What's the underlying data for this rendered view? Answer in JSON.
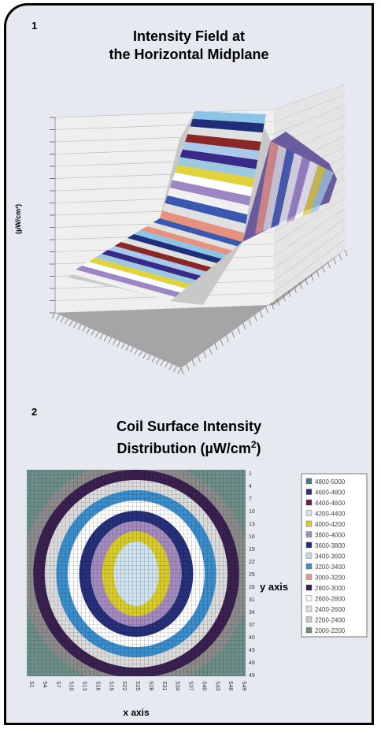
{
  "figure1": {
    "number": "1",
    "title_line1": "Intensity Field at",
    "title_line2": "the Horizontal Midplane",
    "ylabel": "(µW/cm²)"
  },
  "figure2": {
    "number": "2",
    "title_line1": "Coil Surface Intensity",
    "title_line2_text": "Distribution (µW/cm",
    "title_line2_sup": "2",
    "title_line2_close": ")",
    "xlabel": "x axis",
    "ylabel": "y axis",
    "y_ticks": [
      "1",
      "4",
      "7",
      "10",
      "13",
      "16",
      "19",
      "22",
      "25",
      "28",
      "31",
      "34",
      "37",
      "40",
      "43",
      "46",
      "49"
    ],
    "x_ticks": [
      "S1",
      "S4",
      "S7",
      "S10",
      "S13",
      "S16",
      "S19",
      "S22",
      "S25",
      "S28",
      "S31",
      "S34",
      "S37",
      "S40",
      "S43",
      "S46",
      "S49"
    ]
  },
  "chart_data": [
    {
      "type": "surface",
      "title": "Intensity Field at the Horizontal Midplane",
      "ylabel": "(µW/cm²)",
      "band_colors": [
        "#e8917e",
        "#e0e0e0",
        "#3a58b0",
        "#f0f0f0",
        "#9d86c4",
        "#ffffff",
        "#e2d23c",
        "#9cc8e0",
        "#3a2a88",
        "#a8c8ec",
        "#8a2828",
        "#e0e0e0",
        "#1e2e78",
        "#8cc4e8"
      ]
    },
    {
      "type": "heatmap",
      "title": "Coil Surface Intensity Distribution (µW/cm²)",
      "xlabel": "x axis",
      "ylabel": "y axis",
      "y_ticks": [
        1,
        4,
        7,
        10,
        13,
        16,
        19,
        22,
        25,
        28,
        31,
        34,
        37,
        40,
        43,
        46,
        49
      ],
      "x_ticks": [
        "S1",
        "S4",
        "S7",
        "S10",
        "S13",
        "S16",
        "S19",
        "S22",
        "S25",
        "S28",
        "S31",
        "S34",
        "S37",
        "S40",
        "S43",
        "S46",
        "S49"
      ],
      "legend": [
        {
          "label": "4800-5000",
          "color": "#3c7e90"
        },
        {
          "label": "4600-4800",
          "color": "#3a2a80"
        },
        {
          "label": "4400-4600",
          "color": "#6e1f52"
        },
        {
          "label": "4200-4400",
          "color": "#cfe4ee"
        },
        {
          "label": "4000-4200",
          "color": "#d9cc2b"
        },
        {
          "label": "3800-4000",
          "color": "#a48cc0"
        },
        {
          "label": "3600-3800",
          "color": "#27307a"
        },
        {
          "label": "3400-3600",
          "color": "#c7daf0"
        },
        {
          "label": "3200-3400",
          "color": "#3b8ecc"
        },
        {
          "label": "3000-3200",
          "color": "#d8a39a"
        },
        {
          "label": "2800-3000",
          "color": "#3b2150"
        },
        {
          "label": "2600-2800",
          "color": "#f4f4f4"
        },
        {
          "label": "2400-2600",
          "color": "#dedede"
        },
        {
          "label": "2200-2400",
          "color": "#c8c8c8"
        },
        {
          "label": "2000-2200",
          "color": "#6e8e88"
        }
      ]
    }
  ]
}
